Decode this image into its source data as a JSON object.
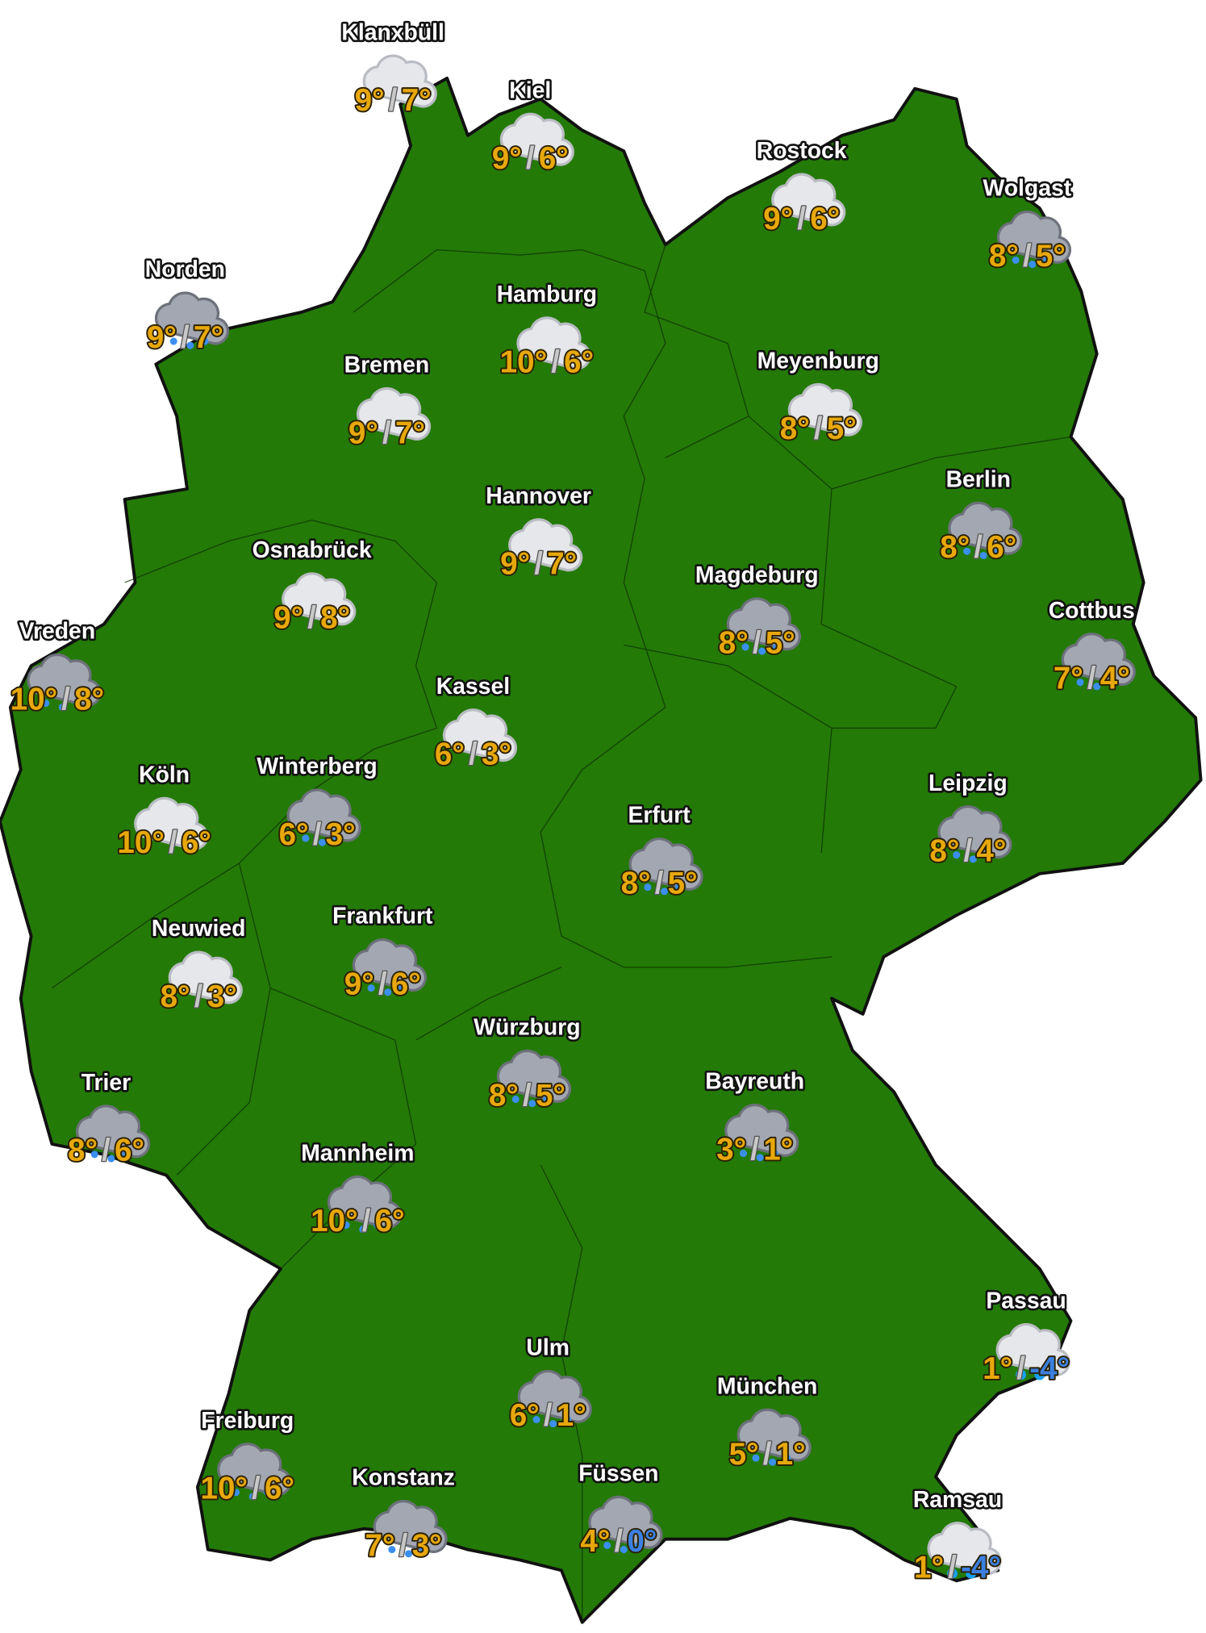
{
  "colors": {
    "land": "#237a06",
    "border": "#111111",
    "temp_positive": "#e8a80c",
    "temp_nonpositive": "#3b7fe0",
    "cloud": "#e6e7ea",
    "rain_cloud": "#a3a7b2",
    "drop": "#3b8ff0"
  },
  "separator": "/",
  "cities": [
    {
      "name": "Klanxbüll",
      "icon": "cloud-icon",
      "high": "9°",
      "low": "7°"
    },
    {
      "name": "Kiel",
      "icon": "cloud-icon",
      "high": "9°",
      "low": "6°"
    },
    {
      "name": "Rostock",
      "icon": "cloud-icon",
      "high": "9°",
      "low": "6°"
    },
    {
      "name": "Wolgast",
      "icon": "rain-cloud-icon",
      "high": "8°",
      "low": "5°"
    },
    {
      "name": "Norden",
      "icon": "rain-cloud-icon",
      "high": "9°",
      "low": "7°"
    },
    {
      "name": "Hamburg",
      "icon": "cloud-icon",
      "high": "10°",
      "low": "6°"
    },
    {
      "name": "Bremen",
      "icon": "cloud-icon",
      "high": "9°",
      "low": "7°"
    },
    {
      "name": "Meyenburg",
      "icon": "cloud-icon",
      "high": "8°",
      "low": "5°"
    },
    {
      "name": "Berlin",
      "icon": "rain-cloud-icon",
      "high": "8°",
      "low": "6°"
    },
    {
      "name": "Hannover",
      "icon": "cloud-icon",
      "high": "9°",
      "low": "7°"
    },
    {
      "name": "Osnabrück",
      "icon": "cloud-icon",
      "high": "9°",
      "low": "8°"
    },
    {
      "name": "Magdeburg",
      "icon": "rain-cloud-icon",
      "high": "8°",
      "low": "5°"
    },
    {
      "name": "Cottbus",
      "icon": "rain-cloud-icon",
      "high": "7°",
      "low": "4°"
    },
    {
      "name": "Vreden",
      "icon": "rain-cloud-icon",
      "high": "10°",
      "low": "8°"
    },
    {
      "name": "Kassel",
      "icon": "cloud-icon",
      "high": "6°",
      "low": "3°"
    },
    {
      "name": "Köln",
      "icon": "cloud-icon",
      "high": "10°",
      "low": "6°"
    },
    {
      "name": "Winterberg",
      "icon": "rain-cloud-icon",
      "high": "6°",
      "low": "3°"
    },
    {
      "name": "Leipzig",
      "icon": "rain-cloud-icon",
      "high": "8°",
      "low": "4°"
    },
    {
      "name": "Erfurt",
      "icon": "rain-cloud-icon",
      "high": "8°",
      "low": "5°"
    },
    {
      "name": "Frankfurt",
      "icon": "rain-cloud-icon",
      "high": "9°",
      "low": "6°"
    },
    {
      "name": "Neuwied",
      "icon": "cloud-icon",
      "high": "8°",
      "low": "3°"
    },
    {
      "name": "Würzburg",
      "icon": "rain-cloud-icon",
      "high": "8°",
      "low": "5°"
    },
    {
      "name": "Bayreuth",
      "icon": "rain-cloud-icon",
      "high": "3°",
      "low": "1°"
    },
    {
      "name": "Trier",
      "icon": "rain-cloud-icon",
      "high": "8°",
      "low": "6°"
    },
    {
      "name": "Mannheim",
      "icon": "rain-cloud-icon",
      "high": "10°",
      "low": "6°"
    },
    {
      "name": "Passau",
      "icon": "snow-cloud-icon",
      "high": "1°",
      "low": "-4°"
    },
    {
      "name": "Ulm",
      "icon": "rain-cloud-icon",
      "high": "6°",
      "low": "1°"
    },
    {
      "name": "München",
      "icon": "rain-cloud-icon",
      "high": "5°",
      "low": "1°"
    },
    {
      "name": "Freiburg",
      "icon": "rain-cloud-icon",
      "high": "10°",
      "low": "6°"
    },
    {
      "name": "Konstanz",
      "icon": "rain-cloud-icon",
      "high": "7°",
      "low": "3°"
    },
    {
      "name": "Füssen",
      "icon": "rain-cloud-icon",
      "high": "4°",
      "low": "0°"
    },
    {
      "name": "Ramsau",
      "icon": "snow-cloud-icon",
      "high": "1°",
      "low": "-4°"
    }
  ]
}
